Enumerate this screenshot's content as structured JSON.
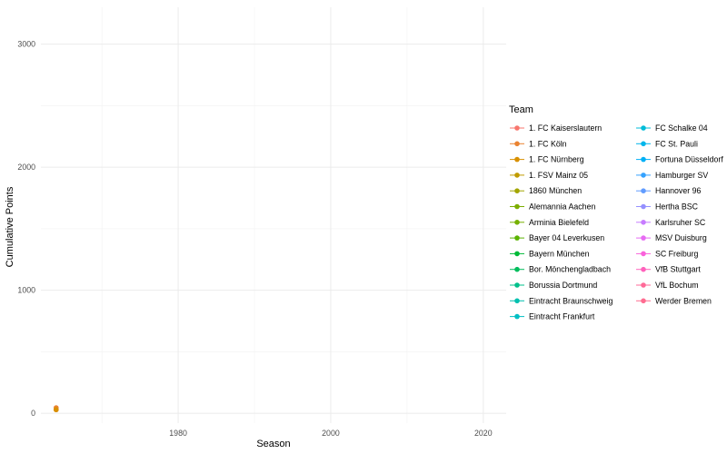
{
  "chart_data": {
    "type": "line",
    "xlabel": "Season",
    "ylabel": "Cumulative Points",
    "xlim": [
      1962,
      2023
    ],
    "ylim": [
      -80,
      3300
    ],
    "x_ticks": [
      1980,
      2000,
      2020
    ],
    "x_tick_labels": [
      "1980",
      "2000",
      "2020"
    ],
    "y_ticks": [
      0,
      1000,
      2000,
      3000
    ],
    "y_tick_labels": [
      "0",
      "1000",
      "2000",
      "3000"
    ],
    "grid": true,
    "legend_title": "Team",
    "legend_position": "right",
    "series": [
      {
        "name": "1. FC Kaiserslautern",
        "color": "#F8766D",
        "x": [
          1964
        ],
        "y": [
          30
        ]
      },
      {
        "name": "1. FC Köln",
        "color": "#EA8331",
        "x": [
          1964
        ],
        "y": [
          45
        ]
      },
      {
        "name": "1. FC Nürnberg",
        "color": "#D89000",
        "x": [
          1964
        ],
        "y": [
          29
        ]
      },
      {
        "name": "1. FSV Mainz 05",
        "color": "#C09B00",
        "x": [],
        "y": []
      },
      {
        "name": "1860 München",
        "color": "#A3A500",
        "x": [],
        "y": []
      },
      {
        "name": "Alemannia Aachen",
        "color": "#7CAE00",
        "x": [],
        "y": []
      },
      {
        "name": "Arminia Bielefeld",
        "color": "#76B000",
        "x": [],
        "y": []
      },
      {
        "name": "Bayer 04 Leverkusen",
        "color": "#5BB300",
        "x": [],
        "y": []
      },
      {
        "name": "Bayern München",
        "color": "#00BA38",
        "x": [],
        "y": []
      },
      {
        "name": "Bor. Mönchengladbach",
        "color": "#00BD5C",
        "x": [],
        "y": []
      },
      {
        "name": "Borussia Dortmund",
        "color": "#00C08B",
        "x": [],
        "y": []
      },
      {
        "name": "Eintracht Braunschweig",
        "color": "#00C0AF",
        "x": [],
        "y": []
      },
      {
        "name": "Eintracht Frankfurt",
        "color": "#00BFC4",
        "x": [],
        "y": []
      },
      {
        "name": "FC Schalke 04",
        "color": "#00BCD8",
        "x": [],
        "y": []
      },
      {
        "name": "FC St. Pauli",
        "color": "#00B6EB",
        "x": [],
        "y": []
      },
      {
        "name": "Fortuna Düsseldorf",
        "color": "#00B0F6",
        "x": [],
        "y": []
      },
      {
        "name": "Hamburger SV",
        "color": "#35A2FF",
        "x": [],
        "y": []
      },
      {
        "name": "Hannover 96",
        "color": "#619CFF",
        "x": [],
        "y": []
      },
      {
        "name": "Hertha BSC",
        "color": "#9590FF",
        "x": [],
        "y": []
      },
      {
        "name": "Karlsruher SC",
        "color": "#C77CFF",
        "x": [],
        "y": []
      },
      {
        "name": "MSV Duisburg",
        "color": "#E76BF3",
        "x": [],
        "y": []
      },
      {
        "name": "SC Freiburg",
        "color": "#FA62DB",
        "x": [],
        "y": []
      },
      {
        "name": "VfB Stuttgart",
        "color": "#FF62BC",
        "x": [],
        "y": []
      },
      {
        "name": "VfL Bochum",
        "color": "#FF6A98",
        "x": [],
        "y": []
      },
      {
        "name": "Werder Bremen",
        "color": "#FF6C91",
        "x": [],
        "y": []
      }
    ]
  }
}
